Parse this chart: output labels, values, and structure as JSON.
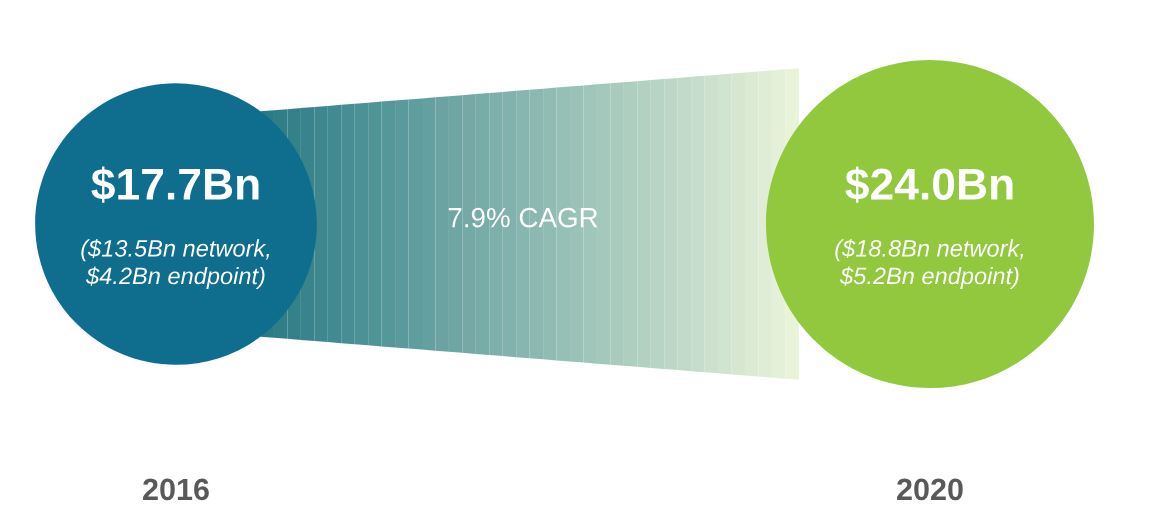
{
  "chart_data": {
    "type": "other",
    "categories": [
      "2016",
      "2020"
    ],
    "values": [
      17.7,
      24.0
    ],
    "value_labels": [
      "$17.7Bn",
      "$24.0Bn"
    ],
    "colors": [
      "#0f6e8e",
      "#92c83e"
    ],
    "annotations": [
      "($13.5Bn network,\n$4.2Bn endpoint)",
      "($18.8Bn network,\n$5.2Bn endpoint)",
      "7.9% CAGR"
    ]
  }
}
